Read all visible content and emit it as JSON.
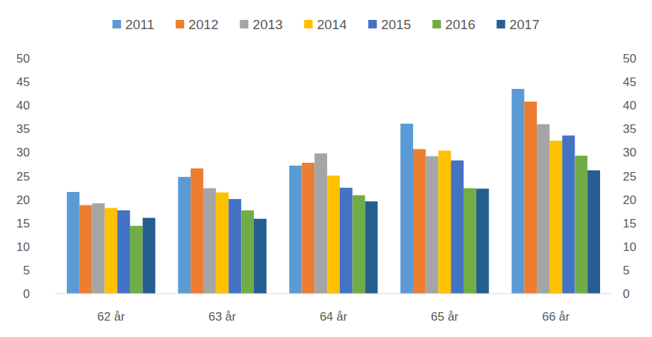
{
  "chart_data": {
    "type": "bar",
    "categories": [
      "62 år",
      "63 år",
      "64 år",
      "65 år",
      "66 år"
    ],
    "series": [
      {
        "name": "2011",
        "color": "#5B9BD5",
        "values": [
          21.6,
          24.8,
          27.2,
          36.1,
          43.5
        ]
      },
      {
        "name": "2012",
        "color": "#ED7D31",
        "values": [
          18.8,
          26.6,
          27.8,
          30.7,
          40.8
        ]
      },
      {
        "name": "2013",
        "color": "#A5A5A5",
        "values": [
          19.2,
          22.4,
          29.8,
          29.2,
          36.0
        ]
      },
      {
        "name": "2014",
        "color": "#FFC000",
        "values": [
          18.2,
          21.5,
          25.1,
          30.4,
          32.5
        ]
      },
      {
        "name": "2015",
        "color": "#4472C4",
        "values": [
          17.7,
          20.1,
          22.5,
          28.3,
          33.6
        ]
      },
      {
        "name": "2016",
        "color": "#70AD47",
        "values": [
          14.4,
          17.7,
          20.9,
          22.4,
          29.3
        ]
      },
      {
        "name": "2017",
        "color": "#255E91",
        "values": [
          16.1,
          15.9,
          19.6,
          22.3,
          26.2
        ]
      }
    ],
    "ylim": [
      0,
      50
    ],
    "yticks": [
      0,
      5,
      10,
      15,
      20,
      25,
      30,
      35,
      40,
      45,
      50
    ],
    "grid": false,
    "legend": "top"
  }
}
